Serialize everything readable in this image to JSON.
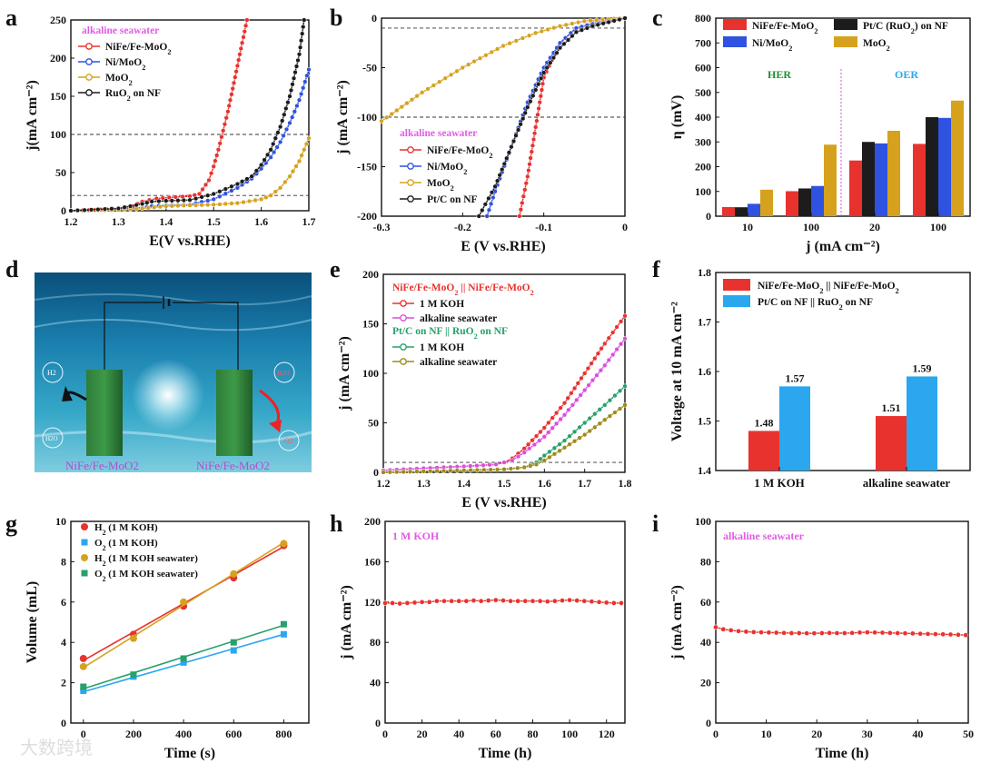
{
  "panels": {
    "a": {
      "letter": "a",
      "title": "alkaline seawater"
    },
    "b": {
      "letter": "b",
      "title": "alkaline seawater"
    },
    "c": {
      "letter": "c"
    },
    "d": {
      "letter": "d",
      "labels": {
        "left_electrode": "NiFe/Fe-MoO2",
        "right_electrode": "NiFe/Fe-MoO2",
        "h2": "H2",
        "h2o": "H2O",
        "o2": "O2",
        "h2o_right": "H2O"
      }
    },
    "e": {
      "letter": "e"
    },
    "f": {
      "letter": "f"
    },
    "g": {
      "letter": "g"
    },
    "h": {
      "letter": "h",
      "title": "1 M KOH"
    },
    "i": {
      "letter": "i",
      "title": "alkaline seawater"
    }
  },
  "watermark": "大数跨境",
  "colors": {
    "red": "#e8322e",
    "blue": "#2f52e0",
    "gold": "#d6a21e",
    "black": "#1c1c1c",
    "magenta": "#d94ee0",
    "green": "#27a06b",
    "olive": "#9e8a18",
    "lightblue": "#2aa7ef",
    "ref_magenta": "#e35ae6",
    "her_green": "#1f8f2b",
    "oer_blue": "#2aa7ef"
  },
  "chart_data": [
    {
      "id": "a",
      "type": "line",
      "xlabel": "E(V vs.RHE)",
      "ylabel": "j(mA cm⁻²)",
      "xlim": [
        1.2,
        1.7
      ],
      "ylim": [
        0,
        250
      ],
      "xticks": [
        1.2,
        1.3,
        1.4,
        1.5,
        1.6,
        1.7
      ],
      "yticks": [
        0,
        50,
        100,
        150,
        200,
        250
      ],
      "reflines_y": [
        100,
        20
      ],
      "series": [
        {
          "name": "NiFe/Fe-MoO2",
          "color": "red",
          "x": [
            1.2,
            1.25,
            1.3,
            1.33,
            1.35,
            1.38,
            1.42,
            1.45,
            1.47,
            1.49,
            1.5,
            1.51,
            1.52,
            1.53,
            1.54,
            1.55,
            1.56,
            1.57
          ],
          "y": [
            0,
            1,
            3,
            6,
            12,
            16,
            18,
            19,
            22,
            40,
            58,
            80,
            105,
            130,
            160,
            190,
            220,
            250
          ]
        },
        {
          "name": "Ni/MoO2",
          "color": "blue",
          "x": [
            1.2,
            1.3,
            1.35,
            1.37,
            1.4,
            1.45,
            1.5,
            1.55,
            1.58,
            1.6,
            1.62,
            1.64,
            1.66,
            1.68,
            1.7
          ],
          "y": [
            0,
            2,
            4,
            6,
            7,
            8,
            15,
            30,
            42,
            55,
            70,
            90,
            115,
            145,
            185
          ]
        },
        {
          "name": "MoO2",
          "color": "gold",
          "x": [
            1.2,
            1.3,
            1.35,
            1.4,
            1.45,
            1.5,
            1.55,
            1.6,
            1.62,
            1.64,
            1.66,
            1.68,
            1.7
          ],
          "y": [
            0,
            1,
            3,
            6,
            7,
            8,
            10,
            15,
            20,
            30,
            45,
            65,
            95
          ]
        },
        {
          "name": "RuO2 on NF",
          "color": "black",
          "x": [
            1.2,
            1.3,
            1.35,
            1.37,
            1.4,
            1.45,
            1.5,
            1.55,
            1.58,
            1.6,
            1.62,
            1.64,
            1.66,
            1.68,
            1.69
          ],
          "y": [
            0,
            3,
            9,
            12,
            13,
            14,
            22,
            35,
            45,
            60,
            80,
            110,
            150,
            205,
            250
          ]
        }
      ]
    },
    {
      "id": "b",
      "type": "line",
      "xlabel": "E (V vs.RHE)",
      "ylabel": "j (mA cm⁻²)",
      "xlim": [
        -0.3,
        0.0
      ],
      "ylim": [
        -200,
        0
      ],
      "xticks": [
        -0.3,
        -0.2,
        -0.1,
        0.0
      ],
      "yticks": [
        0,
        -50,
        -100,
        -150,
        -200
      ],
      "reflines_y": [
        -10,
        -100
      ],
      "series": [
        {
          "name": "NiFe/Fe-MoO2",
          "color": "red",
          "x": [
            0,
            -0.02,
            -0.04,
            -0.06,
            -0.08,
            -0.1,
            -0.11,
            -0.12,
            -0.13
          ],
          "y": [
            0,
            -2,
            -5,
            -10,
            -25,
            -60,
            -110,
            -160,
            -200
          ]
        },
        {
          "name": "Ni/MoO2",
          "color": "blue",
          "x": [
            0,
            -0.02,
            -0.04,
            -0.06,
            -0.08,
            -0.1,
            -0.12,
            -0.14,
            -0.16,
            -0.17
          ],
          "y": [
            0,
            -3,
            -6,
            -10,
            -25,
            -50,
            -85,
            -130,
            -175,
            -200
          ]
        },
        {
          "name": "MoO2",
          "color": "gold",
          "x": [
            0,
            -0.02,
            -0.05,
            -0.08,
            -0.11,
            -0.15,
            -0.2,
            -0.25,
            -0.3
          ],
          "y": [
            0,
            -1,
            -3,
            -8,
            -15,
            -28,
            -50,
            -75,
            -104
          ]
        },
        {
          "name": "Pt/C on NF",
          "color": "black",
          "x": [
            0,
            -0.02,
            -0.04,
            -0.06,
            -0.08,
            -0.1,
            -0.12,
            -0.14,
            -0.16,
            -0.18
          ],
          "y": [
            0,
            -4,
            -8,
            -14,
            -30,
            -55,
            -90,
            -130,
            -170,
            -200
          ]
        }
      ]
    },
    {
      "id": "c",
      "type": "bar",
      "xlabel": "j (mA cm⁻²)",
      "ylabel": "η (mV)",
      "ylim": [
        0,
        800
      ],
      "yticks": [
        0,
        100,
        200,
        300,
        400,
        500,
        600,
        700,
        800
      ],
      "categories": [
        "10",
        "100",
        "20",
        "100"
      ],
      "groups": [
        "HER",
        "OER"
      ],
      "series": [
        {
          "name": "NiFe/Fe-MoO2",
          "color": "red",
          "values": [
            37,
            101,
            225,
            292
          ]
        },
        {
          "name": "Pt/C (RuO2) on NF",
          "color": "black",
          "values": [
            36,
            112,
            300,
            400
          ]
        },
        {
          "name": "Ni/MoO2",
          "color": "blue",
          "values": [
            50,
            122,
            294,
            397
          ]
        },
        {
          "name": "MoO2",
          "color": "gold",
          "values": [
            107,
            289,
            345,
            467
          ]
        }
      ]
    },
    {
      "id": "e",
      "type": "line",
      "xlabel": "E (V vs.RHE)",
      "ylabel": "j (mA cm⁻²)",
      "xlim": [
        1.2,
        1.8
      ],
      "ylim": [
        0,
        200
      ],
      "xticks": [
        1.2,
        1.3,
        1.4,
        1.5,
        1.6,
        1.7,
        1.8
      ],
      "yticks": [
        0,
        50,
        100,
        150,
        200
      ],
      "reflines_y": [
        10
      ],
      "legend_groups": [
        "NiFe/Fe-MoO2 || NiFe/Fe-MoO2",
        "Pt/C on NF || RuO2 on NF"
      ],
      "series": [
        {
          "name": "1 M KOH",
          "group": 0,
          "color": "red",
          "x": [
            1.2,
            1.3,
            1.4,
            1.48,
            1.5,
            1.52,
            1.55,
            1.6,
            1.65,
            1.7,
            1.75,
            1.8
          ],
          "y": [
            2,
            4,
            6,
            8,
            10,
            14,
            24,
            45,
            70,
            100,
            130,
            158
          ]
        },
        {
          "name": "alkaline seawater",
          "group": 0,
          "color": "magenta",
          "x": [
            1.2,
            1.3,
            1.4,
            1.48,
            1.5,
            1.52,
            1.55,
            1.6,
            1.65,
            1.7,
            1.75,
            1.8
          ],
          "y": [
            2,
            4,
            6,
            8,
            10,
            12,
            20,
            36,
            58,
            83,
            108,
            135
          ]
        },
        {
          "name": "1 M KOH",
          "group": 1,
          "color": "green",
          "x": [
            1.2,
            1.3,
            1.4,
            1.5,
            1.55,
            1.58,
            1.6,
            1.65,
            1.7,
            1.75,
            1.8
          ],
          "y": [
            0,
            1,
            2,
            3,
            5,
            10,
            17,
            32,
            50,
            68,
            87
          ]
        },
        {
          "name": "alkaline seawater",
          "group": 1,
          "color": "olive",
          "x": [
            1.2,
            1.3,
            1.4,
            1.5,
            1.55,
            1.58,
            1.6,
            1.65,
            1.7,
            1.75,
            1.8
          ],
          "y": [
            0,
            1,
            2,
            3,
            5,
            8,
            12,
            25,
            38,
            53,
            68
          ]
        }
      ]
    },
    {
      "id": "f",
      "type": "bar",
      "xlabel": "",
      "ylabel": "Voltage at 10 mA cm⁻²",
      "ylim": [
        1.4,
        1.8
      ],
      "yticks": [
        1.4,
        1.5,
        1.6,
        1.7,
        1.8
      ],
      "categories": [
        "1 M KOH",
        "alkaline seawater"
      ],
      "series": [
        {
          "name": "NiFe/Fe-MoO2 || NiFe/Fe-MoO2",
          "color": "red",
          "values": [
            1.48,
            1.51
          ],
          "labels": [
            "1.48",
            "1.51"
          ]
        },
        {
          "name": "Pt/C on NF || RuO2 on NF",
          "color": "lightblue",
          "values": [
            1.57,
            1.59
          ],
          "labels": [
            "1.57",
            "1.59"
          ]
        }
      ]
    },
    {
      "id": "g",
      "type": "scatter",
      "xlabel": "Time (s)",
      "ylabel": "Volume (mL)",
      "xlim": [
        -50,
        900
      ],
      "ylim": [
        0,
        10
      ],
      "xticks": [
        0,
        200,
        400,
        600,
        800
      ],
      "yticks": [
        0,
        2,
        4,
        6,
        8,
        10
      ],
      "series": [
        {
          "name": "H2 (1 M KOH)",
          "color": "red",
          "marker": "circle",
          "x": [
            0,
            200,
            400,
            600,
            800
          ],
          "y": [
            3.2,
            4.4,
            5.8,
            7.2,
            8.8
          ],
          "fit": [
            3.1,
            8.75
          ]
        },
        {
          "name": "O2 (1 M KOH)",
          "color": "lightblue",
          "marker": "square",
          "x": [
            0,
            200,
            400,
            600,
            800
          ],
          "y": [
            1.6,
            2.3,
            3.0,
            3.6,
            4.4
          ],
          "fit": [
            1.55,
            4.4
          ]
        },
        {
          "name": "H2 (1 M KOH seawater)",
          "color": "gold",
          "marker": "circle",
          "x": [
            0,
            200,
            400,
            600,
            800
          ],
          "y": [
            2.8,
            4.2,
            6.0,
            7.4,
            8.9
          ],
          "fit": [
            2.75,
            8.95
          ]
        },
        {
          "name": "O2 (1 M KOH seawater)",
          "color": "green",
          "marker": "square",
          "x": [
            0,
            200,
            400,
            600,
            800
          ],
          "y": [
            1.8,
            2.4,
            3.2,
            4.0,
            4.9
          ],
          "fit": [
            1.7,
            4.85
          ]
        }
      ]
    },
    {
      "id": "h",
      "type": "line",
      "xlabel": "Time (h)",
      "ylabel": "j (mA cm⁻²)",
      "xlim": [
        0,
        130
      ],
      "ylim": [
        0,
        200
      ],
      "xticks": [
        0,
        20,
        40,
        60,
        80,
        100,
        120
      ],
      "yticks": [
        0,
        40,
        80,
        120,
        160,
        200
      ],
      "series": [
        {
          "name": "1 M KOH",
          "color": "red",
          "x": [
            0,
            4,
            8,
            12,
            16,
            20,
            24,
            28,
            32,
            36,
            40,
            44,
            48,
            52,
            56,
            60,
            64,
            68,
            72,
            76,
            80,
            84,
            88,
            92,
            96,
            100,
            104,
            108,
            112,
            116,
            120,
            124,
            128
          ],
          "y": [
            119,
            119,
            118.5,
            119,
            119.5,
            120,
            120,
            121,
            121,
            121,
            121,
            121,
            121.5,
            121,
            121.5,
            122,
            121.5,
            121,
            121,
            121,
            121,
            121,
            120.5,
            121,
            121.5,
            122,
            121.5,
            121,
            120.5,
            120,
            119.5,
            119,
            119
          ]
        }
      ]
    },
    {
      "id": "i",
      "type": "line",
      "xlabel": "Time (h)",
      "ylabel": "j (mA cm⁻²)",
      "xlim": [
        0,
        50
      ],
      "ylim": [
        0,
        100
      ],
      "xticks": [
        0,
        10,
        20,
        30,
        40,
        50
      ],
      "yticks": [
        0,
        20,
        40,
        60,
        80,
        100
      ],
      "series": [
        {
          "name": "alkaline seawater",
          "color": "red",
          "x": [
            0,
            1.5,
            3,
            4.5,
            6,
            7.5,
            9,
            10.5,
            12,
            13.5,
            15,
            16.5,
            18,
            19.5,
            21,
            22.5,
            24,
            25.5,
            27,
            28.5,
            30,
            31.5,
            33,
            34.5,
            36,
            37.5,
            39,
            40.5,
            42,
            43.5,
            45,
            46.5,
            48,
            49.5
          ],
          "y": [
            47.5,
            46.5,
            46,
            45.6,
            45.3,
            45.1,
            45,
            44.9,
            44.8,
            44.7,
            44.6,
            44.6,
            44.5,
            44.5,
            44.6,
            44.7,
            44.6,
            44.6,
            44.7,
            44.9,
            45,
            44.9,
            44.8,
            44.7,
            44.6,
            44.5,
            44.4,
            44.3,
            44.2,
            44.1,
            44,
            43.9,
            43.8,
            43.6
          ]
        }
      ]
    }
  ]
}
